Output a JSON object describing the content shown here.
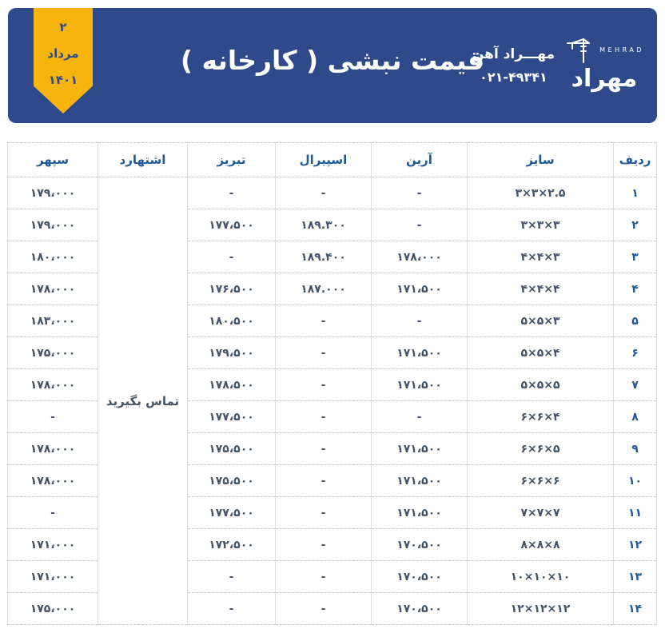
{
  "header": {
    "date_badge": {
      "day": "۲",
      "month": "مرداد",
      "year": "۱۴۰۱"
    },
    "title": "قیمت نبشی ( کارخانه )",
    "brand": {
      "name": "مهـــراد آهن",
      "phone": "۰۲۱-۴۹۳۴۱",
      "logo_word": "مهراد",
      "logo_latin": "MEHRAD"
    }
  },
  "table": {
    "columns": [
      "ردیف",
      "سایز",
      "آرین",
      "اسپیرال",
      "تبریز",
      "اشتهارد",
      "سپهر"
    ],
    "eshtehard_note": "تماس بگیرید",
    "rows": [
      {
        "no": "۱",
        "size": "۳×۳×۲.۵",
        "arian": "-",
        "spiral": "-",
        "tabriz": "-",
        "sepehr": "۱۷۹،۰۰۰"
      },
      {
        "no": "۲",
        "size": "۳×۳×۳",
        "arian": "-",
        "spiral": "۱۸۹.۳۰۰",
        "tabriz": "۱۷۷،۵۰۰",
        "sepehr": "۱۷۹،۰۰۰"
      },
      {
        "no": "۳",
        "size": "۴×۴×۳",
        "arian": "۱۷۸،۰۰۰",
        "spiral": "۱۸۹.۴۰۰",
        "tabriz": "-",
        "sepehr": "۱۸۰،۰۰۰"
      },
      {
        "no": "۴",
        "size": "۴×۴×۴",
        "arian": "۱۷۱،۵۰۰",
        "spiral": "۱۸۷.۰۰۰",
        "tabriz": "۱۷۶،۵۰۰",
        "sepehr": "۱۷۸،۰۰۰"
      },
      {
        "no": "۵",
        "size": "۵×۵×۳",
        "arian": "-",
        "spiral": "-",
        "tabriz": "۱۸۰،۵۰۰",
        "sepehr": "۱۸۳،۰۰۰"
      },
      {
        "no": "۶",
        "size": "۵×۵×۴",
        "arian": "۱۷۱،۵۰۰",
        "spiral": "-",
        "tabriz": "۱۷۹،۵۰۰",
        "sepehr": "۱۷۵،۰۰۰"
      },
      {
        "no": "۷",
        "size": "۵×۵×۵",
        "arian": "۱۷۱،۵۰۰",
        "spiral": "-",
        "tabriz": "۱۷۸،۵۰۰",
        "sepehr": "۱۷۸،۰۰۰"
      },
      {
        "no": "۸",
        "size": "۶×۶×۴",
        "arian": "-",
        "spiral": "-",
        "tabriz": "۱۷۷،۵۰۰",
        "sepehr": "-"
      },
      {
        "no": "۹",
        "size": "۶×۶×۵",
        "arian": "۱۷۱،۵۰۰",
        "spiral": "-",
        "tabriz": "۱۷۵،۵۰۰",
        "sepehr": "۱۷۸،۰۰۰"
      },
      {
        "no": "۱۰",
        "size": "۶×۶×۶",
        "arian": "۱۷۱،۵۰۰",
        "spiral": "-",
        "tabriz": "۱۷۵،۵۰۰",
        "sepehr": "۱۷۸،۰۰۰"
      },
      {
        "no": "۱۱",
        "size": "۷×۷×۷",
        "arian": "۱۷۱،۵۰۰",
        "spiral": "-",
        "tabriz": "۱۷۷،۵۰۰",
        "sepehr": "-"
      },
      {
        "no": "۱۲",
        "size": "۸×۸×۸",
        "arian": "۱۷۰،۵۰۰",
        "spiral": "-",
        "tabriz": "۱۷۲،۵۰۰",
        "sepehr": "۱۷۱،۰۰۰"
      },
      {
        "no": "۱۳",
        "size": "۱۰×۱۰×۱۰",
        "arian": "۱۷۰،۵۰۰",
        "spiral": "-",
        "tabriz": "-",
        "sepehr": "۱۷۱،۰۰۰"
      },
      {
        "no": "۱۴",
        "size": "۱۲×۱۲×۱۲",
        "arian": "۱۷۰،۵۰۰",
        "spiral": "-",
        "tabriz": "-",
        "sepehr": "۱۷۵،۰۰۰"
      }
    ]
  },
  "icons": {
    "crane_icon": "tower-crane"
  },
  "colors": {
    "header_bg": "#2E4A8B",
    "ribbon_yellow": "#F7B30E",
    "header_text": "#FFFFFF",
    "column_header_text": "#1D5A9B",
    "cell_text": "#44546A",
    "row_number_text": "#1D5A9B",
    "border": "#C7C7C7"
  }
}
